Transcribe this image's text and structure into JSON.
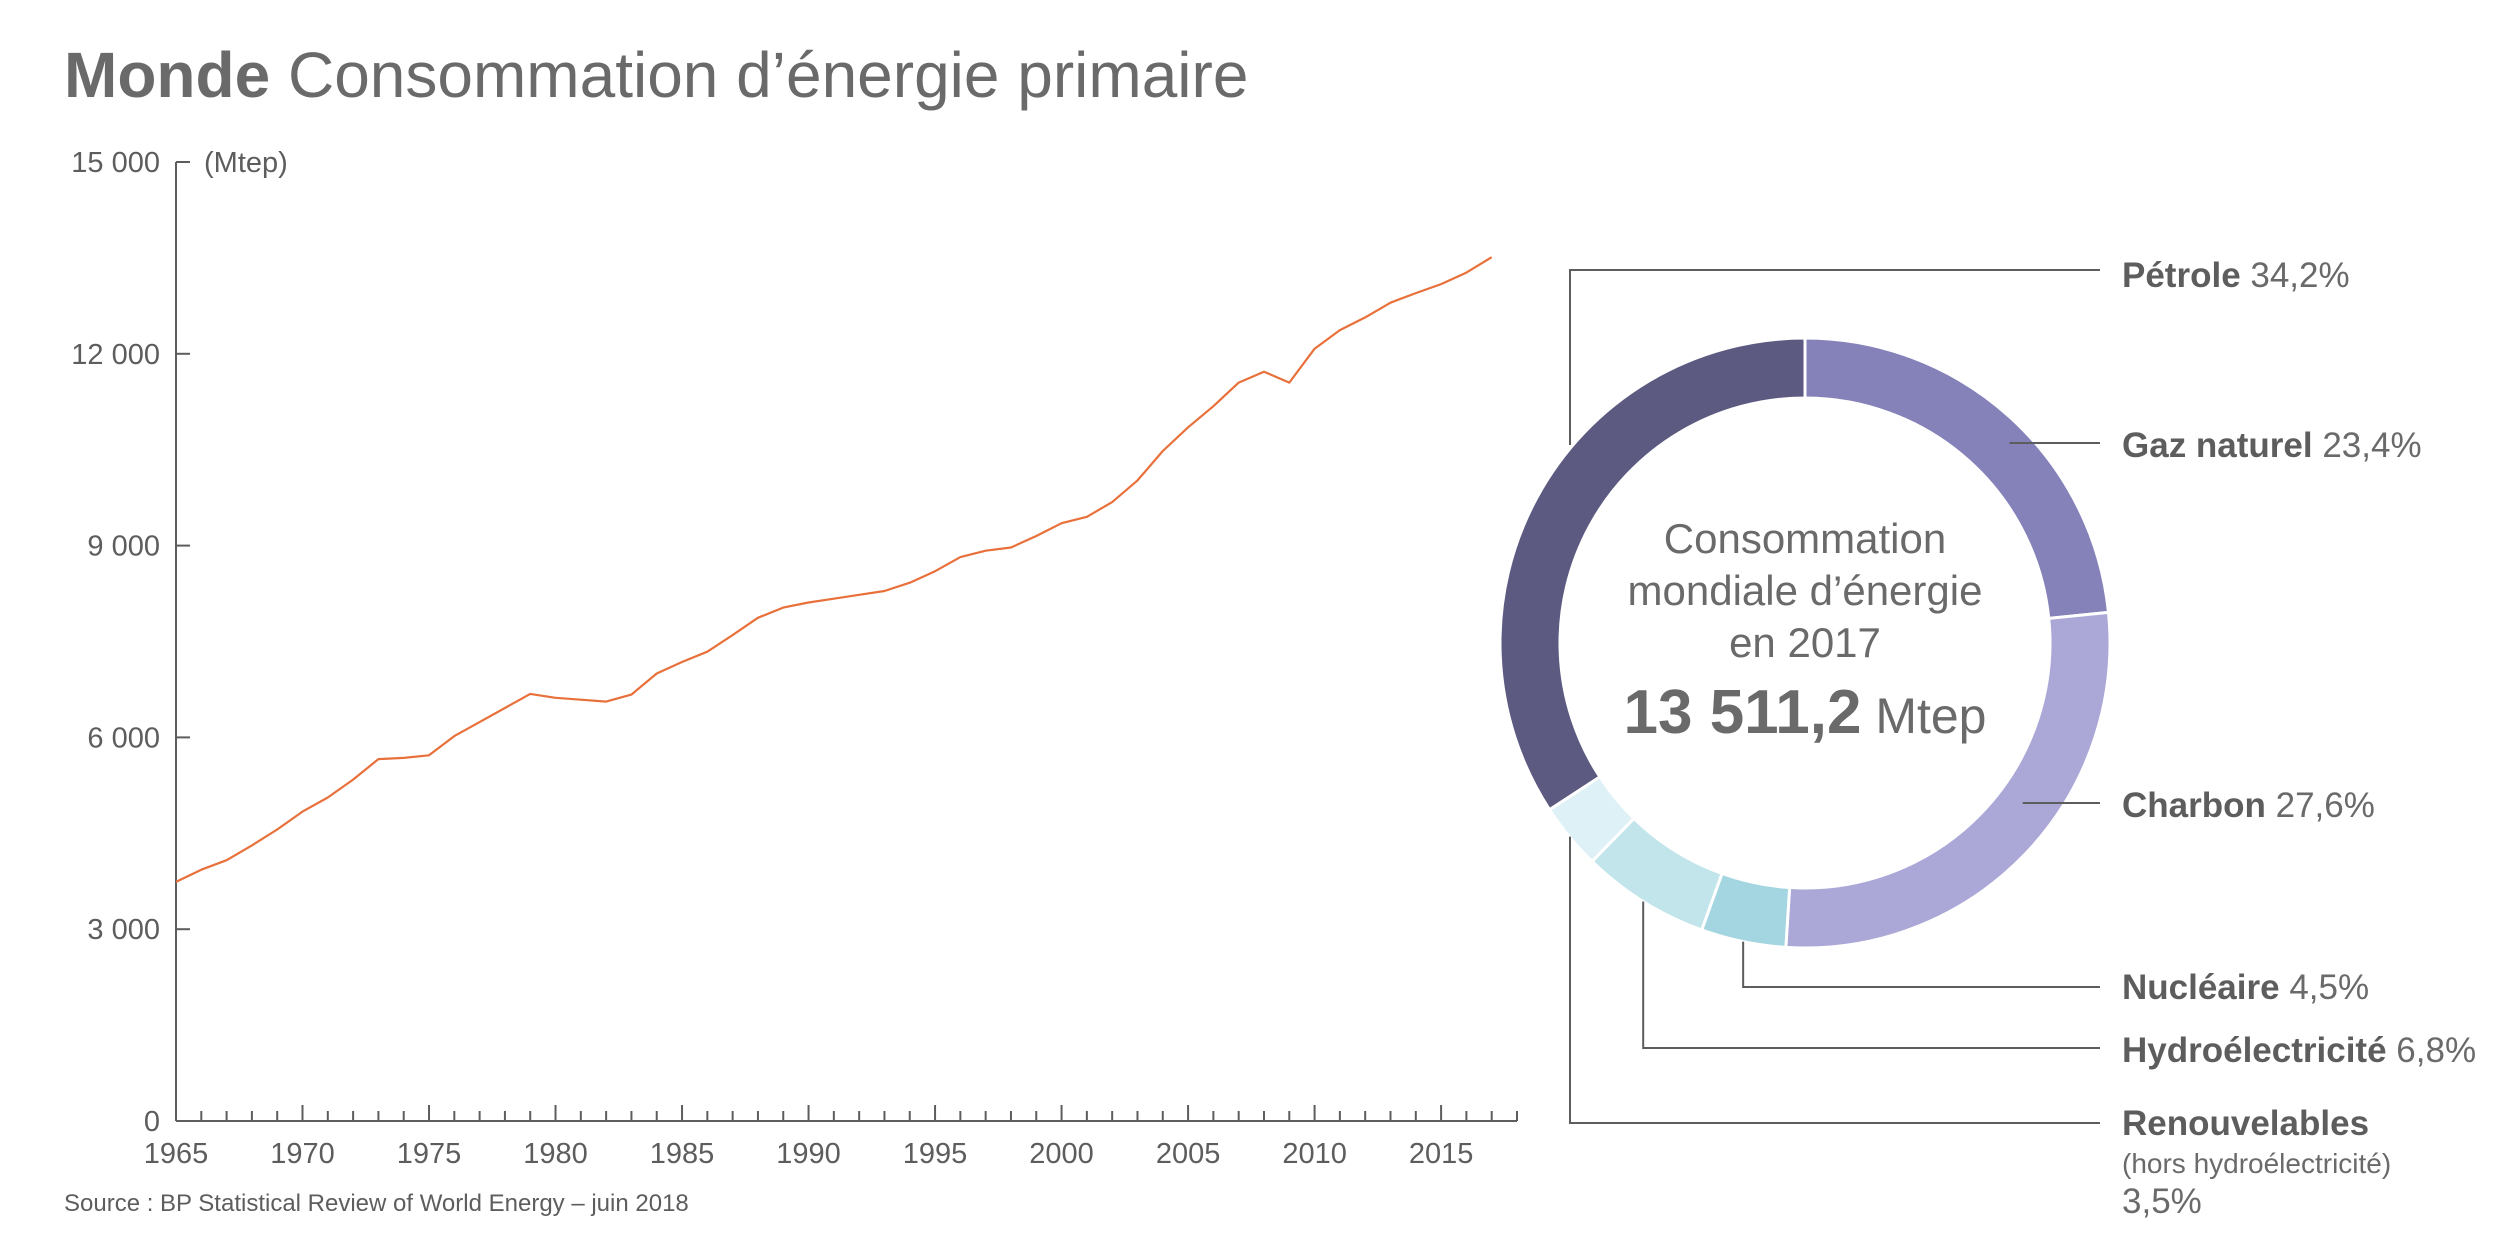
{
  "title": {
    "bold": "Monde",
    "rest": "Consommation d’énergie primaire"
  },
  "source": "Source : BP Statistical Review of World Energy – juin 2018",
  "chart_data": [
    {
      "type": "line",
      "title": "Monde Consommation d’énergie primaire",
      "ylabel": "(Mtep)",
      "xlabel": "",
      "ylim": [
        0,
        15000
      ],
      "xlim": [
        1965,
        2018
      ],
      "yticks": [
        0,
        3000,
        6000,
        9000,
        12000,
        15000
      ],
      "ytick_labels": [
        "0",
        "3 000",
        "6 000",
        "9 000",
        "12 000",
        "15 000"
      ],
      "xticks": [
        1965,
        1970,
        1975,
        1980,
        1985,
        1990,
        1995,
        2000,
        2005,
        2010,
        2015
      ],
      "xtick_labels": [
        "1965",
        "1970",
        "1975",
        "1980",
        "1985",
        "1990",
        "1995",
        "2000",
        "2005",
        "2010",
        "2015"
      ],
      "grid": false,
      "color": "#e8703a",
      "x": [
        1965,
        1966,
        1967,
        1968,
        1969,
        1970,
        1971,
        1972,
        1973,
        1974,
        1975,
        1976,
        1977,
        1978,
        1979,
        1980,
        1981,
        1982,
        1983,
        1984,
        1985,
        1986,
        1987,
        1988,
        1989,
        1990,
        1991,
        1992,
        1993,
        1994,
        1995,
        1996,
        1997,
        1998,
        1999,
        2000,
        2001,
        2002,
        2003,
        2004,
        2005,
        2006,
        2007,
        2008,
        2009,
        2010,
        2011,
        2012,
        2013,
        2014,
        2015,
        2016,
        2017
      ],
      "y": [
        3740,
        3930,
        4080,
        4310,
        4560,
        4840,
        5060,
        5340,
        5660,
        5680,
        5720,
        6020,
        6240,
        6460,
        6680,
        6620,
        6590,
        6560,
        6670,
        7000,
        7180,
        7340,
        7600,
        7870,
        8030,
        8110,
        8170,
        8230,
        8290,
        8420,
        8600,
        8820,
        8920,
        8970,
        9150,
        9350,
        9450,
        9680,
        10020,
        10480,
        10850,
        11180,
        11550,
        11720,
        11550,
        12080,
        12370,
        12570,
        12800,
        12950,
        13090,
        13270,
        13511
      ]
    },
    {
      "type": "pie",
      "donut": true,
      "center_text": [
        "Consommation",
        "mondiale d’énergie",
        "en 2017"
      ],
      "center_value": "13 511,2",
      "center_unit": "Mtep",
      "total": 13511.2,
      "slices": [
        {
          "name": "Pétrole",
          "pct_label": "34,2%",
          "value": 34.2,
          "color": "#5c5a80",
          "note": ""
        },
        {
          "name": "Gaz naturel",
          "pct_label": "23,4%",
          "value": 23.4,
          "color": "#8581b9",
          "note": ""
        },
        {
          "name": "Charbon",
          "pct_label": "27,6%",
          "value": 27.6,
          "color": "#aba8d8",
          "note": ""
        },
        {
          "name": "Nucléaire",
          "pct_label": "4,5%",
          "value": 4.5,
          "color": "#a3d6e0",
          "note": ""
        },
        {
          "name": "Hydroélectricité",
          "pct_label": "6,8%",
          "value": 6.8,
          "color": "#c2e4eb",
          "note": ""
        },
        {
          "name": "Renouvelables",
          "pct_label": "3,5%",
          "value": 3.5,
          "color": "#ddf1f6",
          "note": "(hors hydroélectricité)"
        }
      ],
      "draw_order": [
        1,
        2,
        3,
        4,
        5,
        0
      ]
    }
  ]
}
